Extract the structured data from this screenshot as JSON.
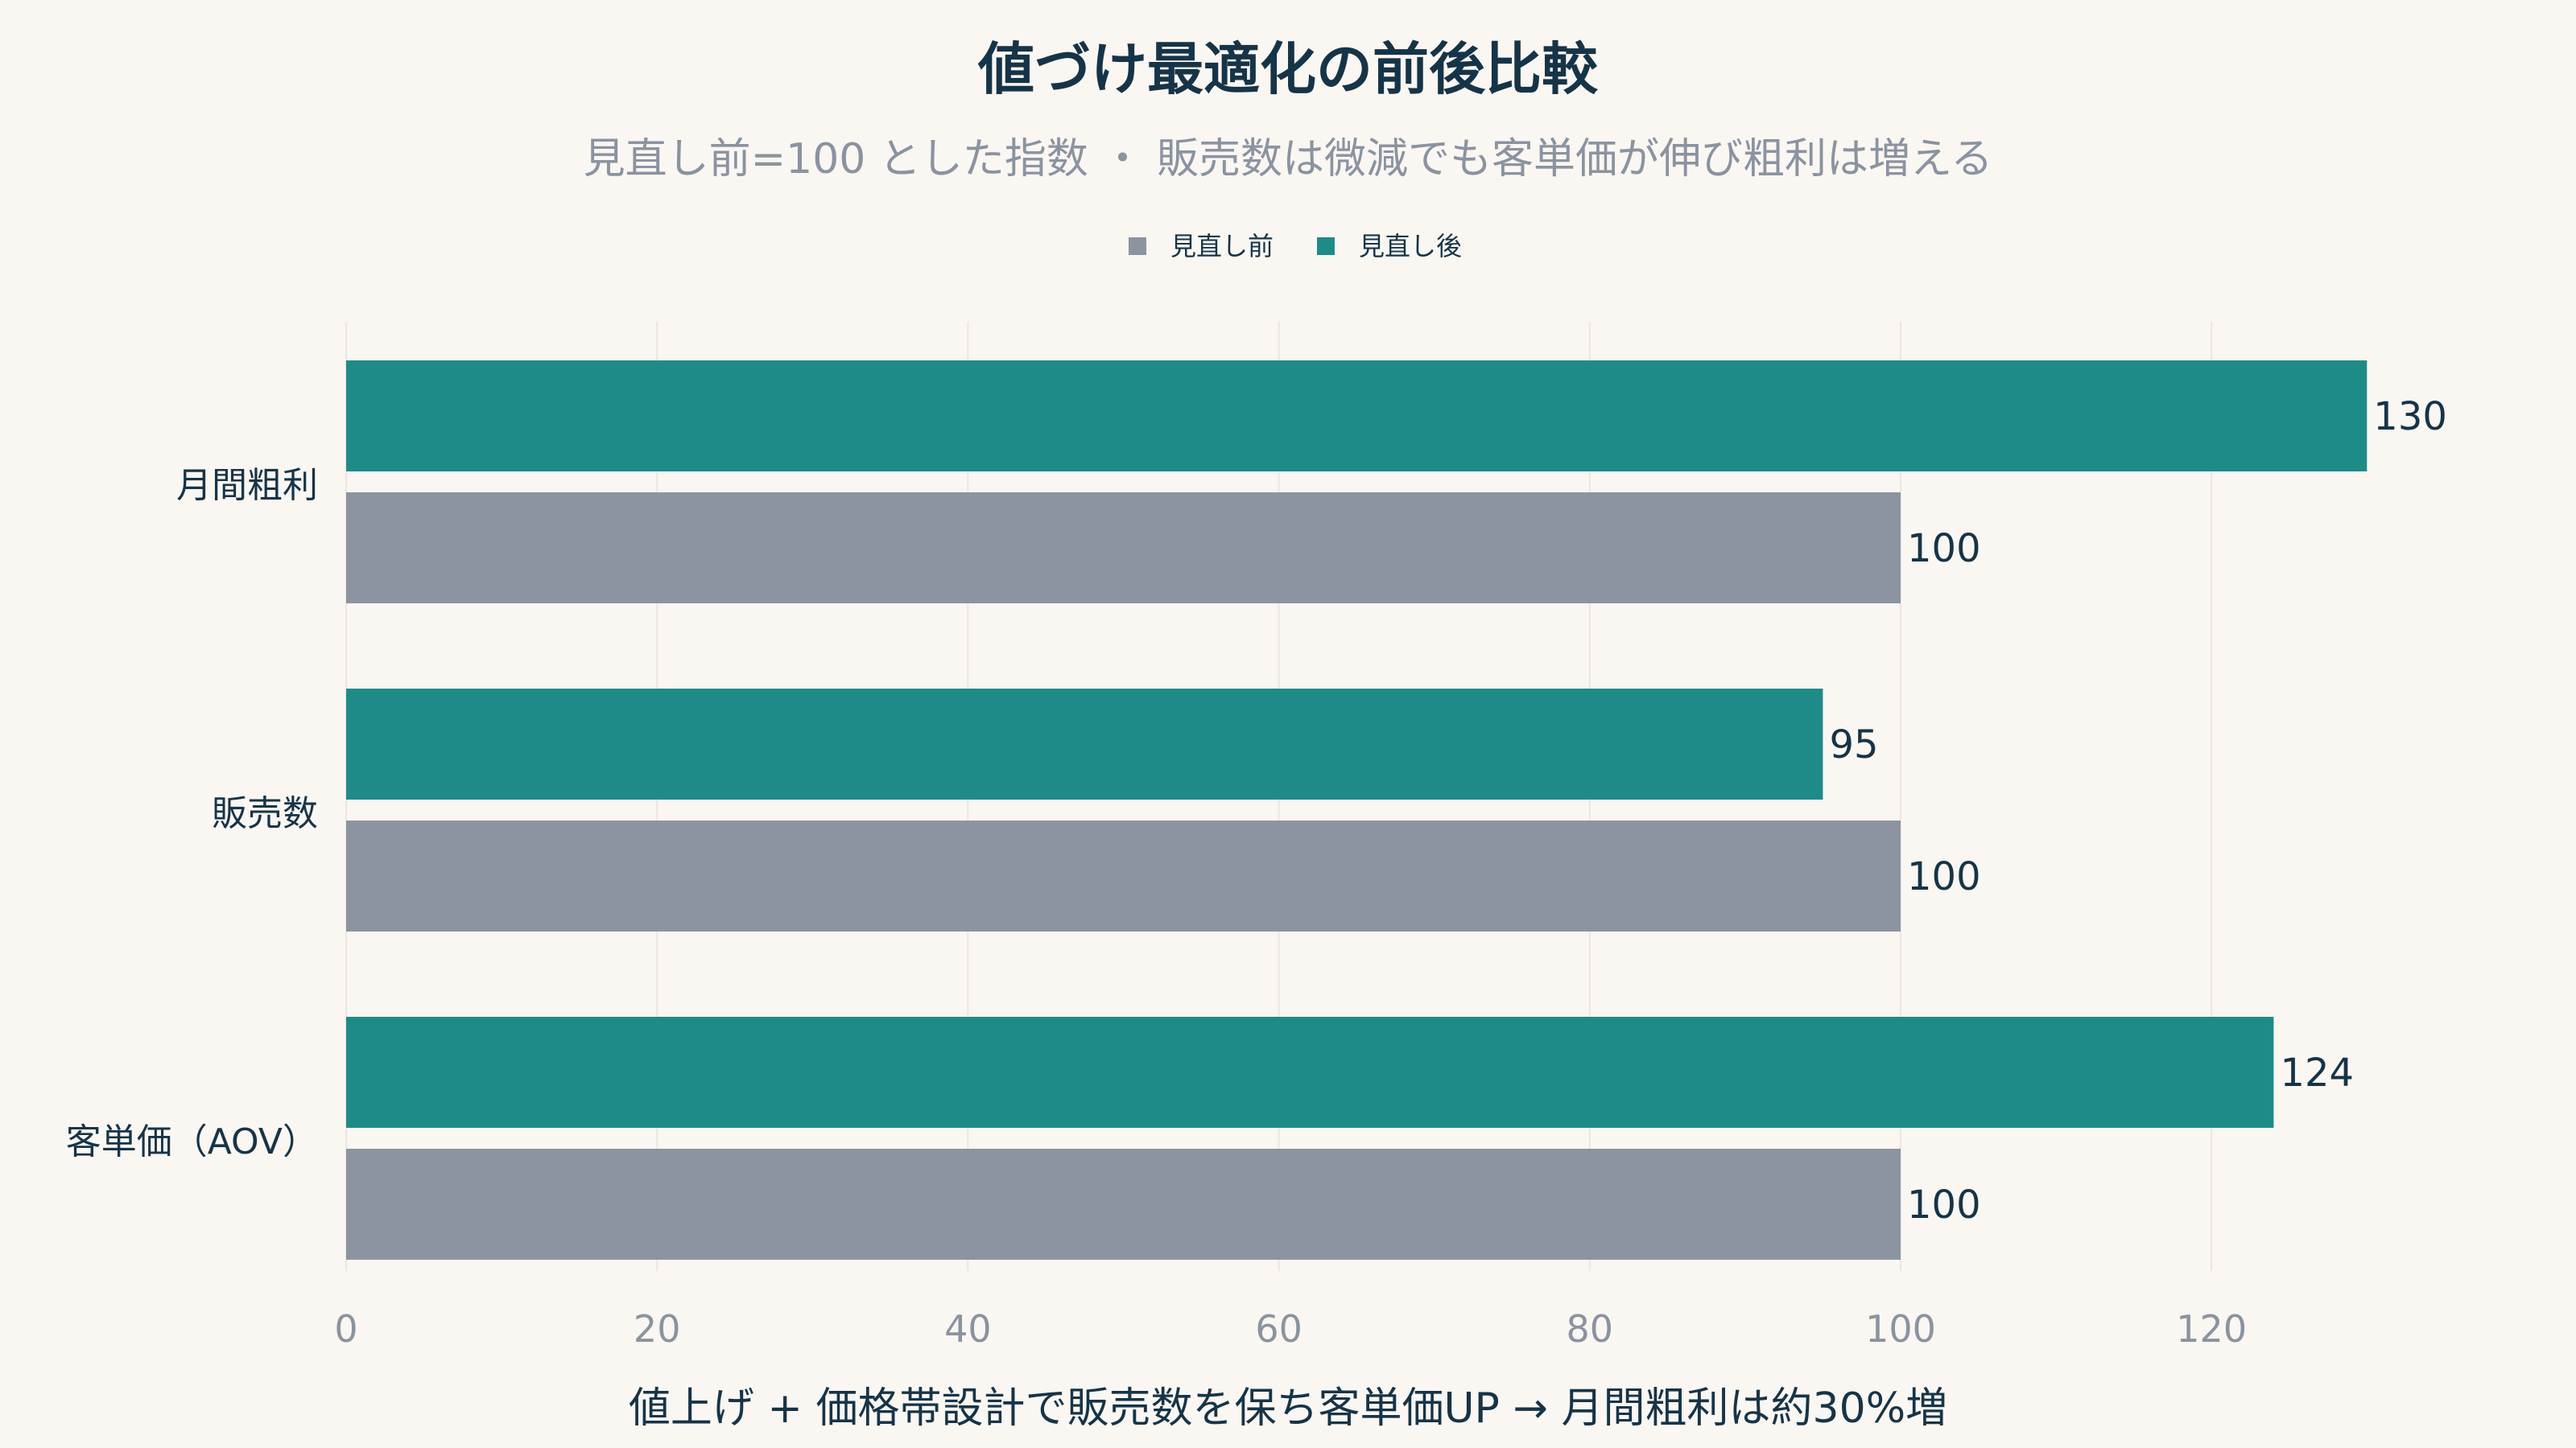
{
  "chart_data": {
    "type": "bar",
    "orientation": "horizontal",
    "title": "値づけ最適化の前後比較",
    "subtitle": "見直し前=100 とした指数 ・ 販売数は微減でも客単価が伸び粗利は増える",
    "caption": "値上げ + 価格帯設計で販売数を保ち客単価UP → 月間粗利は約30%増",
    "categories": [
      "月間粗利",
      "販売数",
      "客単価（AOV）"
    ],
    "series": [
      {
        "name": "見直し前",
        "color": "#8c94a1",
        "values": [
          100,
          100,
          100
        ]
      },
      {
        "name": "見直し後",
        "color": "#1f8b89",
        "values": [
          130,
          95,
          124
        ]
      }
    ],
    "xlim": [
      0,
      130
    ],
    "xticks": [
      0,
      20,
      40,
      60,
      80,
      100,
      120
    ],
    "grid": true,
    "legend_position": "top-center"
  }
}
